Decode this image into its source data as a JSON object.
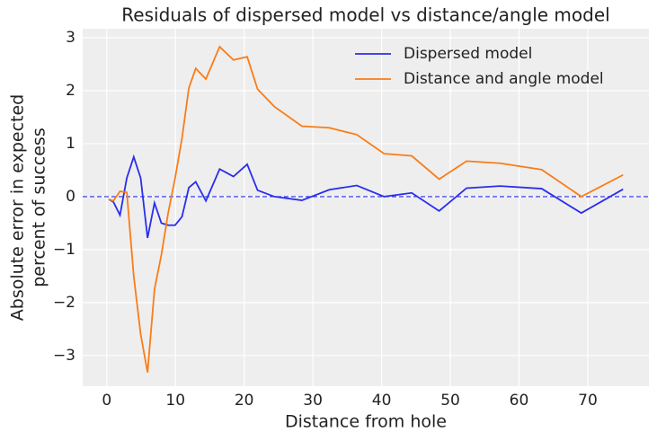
{
  "chart_data": {
    "type": "line",
    "title": "Residuals of dispersed model vs distance/angle model",
    "xlabel": "Distance from hole",
    "ylabel": [
      "Absolute error in expected",
      "percent of success"
    ],
    "x": [
      0.28,
      0.97,
      1.93,
      2.92,
      3.93,
      4.94,
      5.94,
      6.95,
      7.95,
      8.95,
      9.95,
      10.95,
      11.95,
      12.95,
      14.43,
      16.43,
      18.44,
      20.44,
      21.95,
      24.39,
      28.4,
      32.38,
      36.39,
      40.37,
      44.38,
      48.37,
      52.36,
      57.25,
      63.3,
      69.06,
      75.14
    ],
    "series": [
      {
        "name": "Dispersed model",
        "color": "#2a2eec",
        "values": [
          -0.05,
          -0.1,
          -0.35,
          0.35,
          0.75,
          0.35,
          -0.78,
          -0.12,
          -0.5,
          -0.54,
          -0.54,
          -0.38,
          0.17,
          0.28,
          -0.08,
          0.52,
          0.38,
          0.61,
          0.12,
          0.0,
          -0.07,
          0.13,
          0.21,
          0.0,
          0.07,
          -0.27,
          0.16,
          0.2,
          0.15,
          -0.31,
          0.14
        ]
      },
      {
        "name": "Distance and angle model",
        "color": "#fa7c17",
        "values": [
          -0.05,
          -0.08,
          0.1,
          0.08,
          -1.5,
          -2.6,
          -3.32,
          -1.75,
          -1.1,
          -0.3,
          0.35,
          1.1,
          2.05,
          2.42,
          2.22,
          2.83,
          2.58,
          2.64,
          2.03,
          1.7,
          1.33,
          1.3,
          1.17,
          0.81,
          0.77,
          0.33,
          0.67,
          0.63,
          0.51,
          0.0,
          0.41
        ]
      }
    ],
    "hline": 0,
    "hline_color": "#2a2eec",
    "xlim": [
      -3.5,
      78.9
    ],
    "ylim": [
      -3.58,
      3.17
    ],
    "xticks": [
      0,
      10,
      20,
      30,
      40,
      50,
      60,
      70
    ],
    "yticks": [
      {
        "value": -3,
        "label": "−3"
      },
      {
        "value": -2,
        "label": "−2"
      },
      {
        "value": -1,
        "label": "−1"
      },
      0,
      1,
      2,
      3
    ],
    "grid": true,
    "legend": "upper right"
  }
}
